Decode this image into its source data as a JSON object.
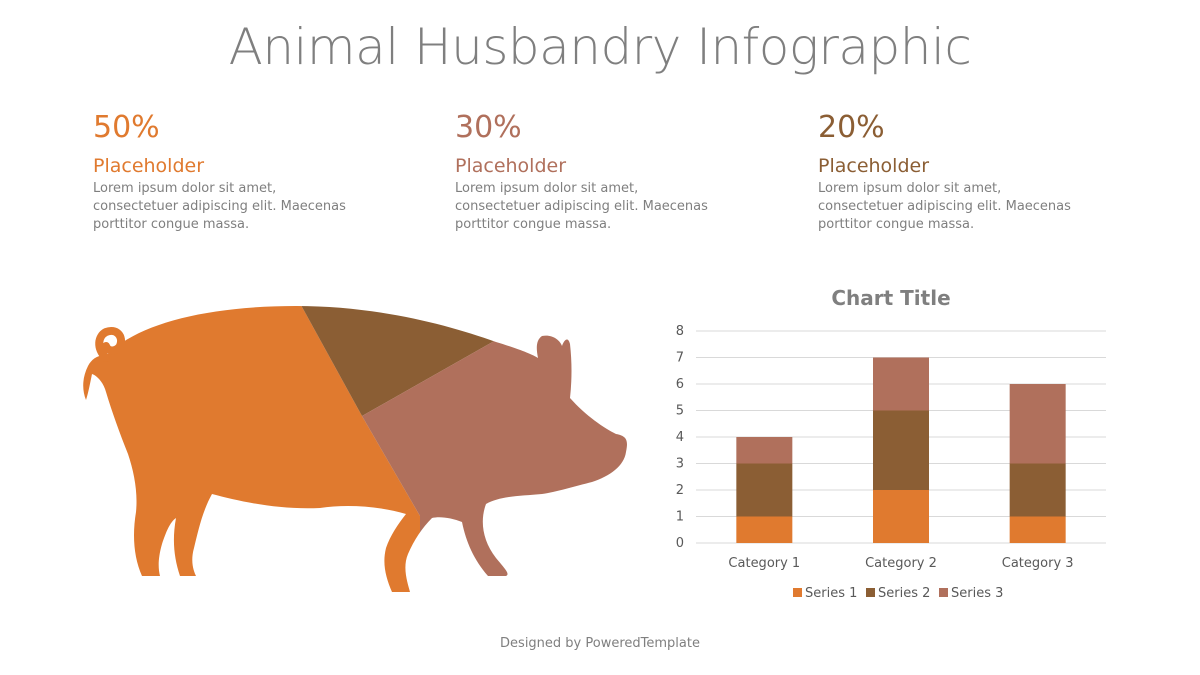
{
  "title": "Animal Husbandry Infographic",
  "stats": [
    {
      "percent": "50%",
      "heading": "Placeholder",
      "body": "Lorem ipsum dolor sit amet, consectetuer adipiscing elit. Maecenas porttitor congue massa.",
      "color": "#E07A2F"
    },
    {
      "percent": "30%",
      "heading": "Placeholder",
      "body": "Lorem ipsum dolor sit amet, consectetuer adipiscing elit. Maecenas porttitor congue massa.",
      "color": "#B0705C"
    },
    {
      "percent": "20%",
      "heading": "Placeholder",
      "body": "Lorem ipsum dolor sit amet, consectetuer adipiscing elit. Maecenas porttitor congue massa.",
      "color": "#8B5E34"
    }
  ],
  "pig_colors": {
    "rear": "#E07A2F",
    "back": "#8B5E34",
    "front": "#B0705C"
  },
  "footer": "Designed by PoweredTemplate",
  "chart_data": {
    "type": "bar",
    "stacked": true,
    "title": "Chart Title",
    "categories": [
      "Category 1",
      "Category 2",
      "Category 3"
    ],
    "series": [
      {
        "name": "Series 1",
        "values": [
          1,
          2,
          1
        ],
        "color": "#E07A2F"
      },
      {
        "name": "Series 2",
        "values": [
          2,
          3,
          2
        ],
        "color": "#8B5E34"
      },
      {
        "name": "Series 3",
        "values": [
          1,
          2,
          3
        ],
        "color": "#B0705C"
      }
    ],
    "ylim": [
      0,
      8
    ],
    "yticks": [
      0,
      1,
      2,
      3,
      4,
      5,
      6,
      7,
      8
    ],
    "grid": true,
    "legend": "bottom"
  }
}
